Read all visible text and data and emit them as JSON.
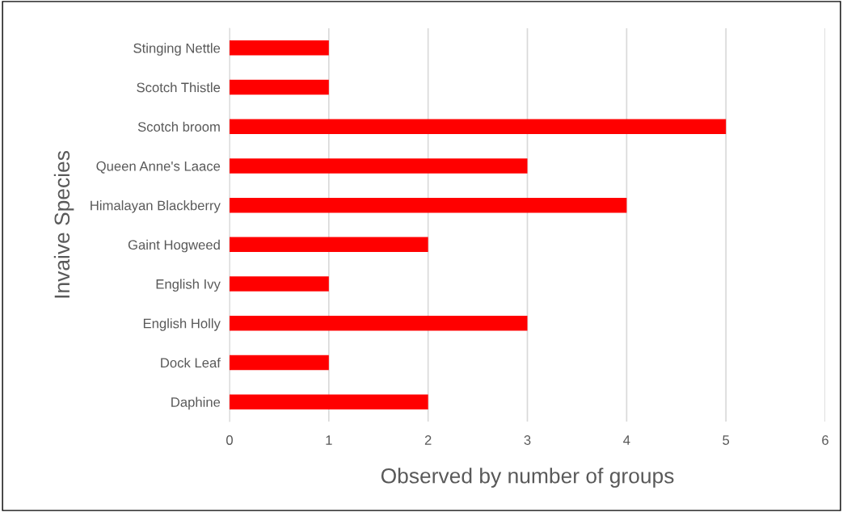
{
  "chart_data": {
    "type": "bar",
    "orientation": "horizontal",
    "xlabel": "Observed by number of groups",
    "ylabel": "Invaive Species",
    "categories": [
      "Stinging Nettle",
      "Scotch Thistle",
      "Scotch broom",
      "Queen Anne's Laace",
      "Himalayan Blackberry",
      "Gaint Hogweed",
      "English Ivy",
      "English Holly",
      "Dock Leaf",
      "Daphine"
    ],
    "values": [
      1,
      1,
      5,
      3,
      4,
      2,
      1,
      3,
      1,
      2
    ],
    "color": "#ff0000",
    "xlim": [
      0,
      6
    ],
    "xticks": [
      0,
      1,
      2,
      3,
      4,
      5,
      6
    ],
    "grid": "x",
    "legend": false
  }
}
